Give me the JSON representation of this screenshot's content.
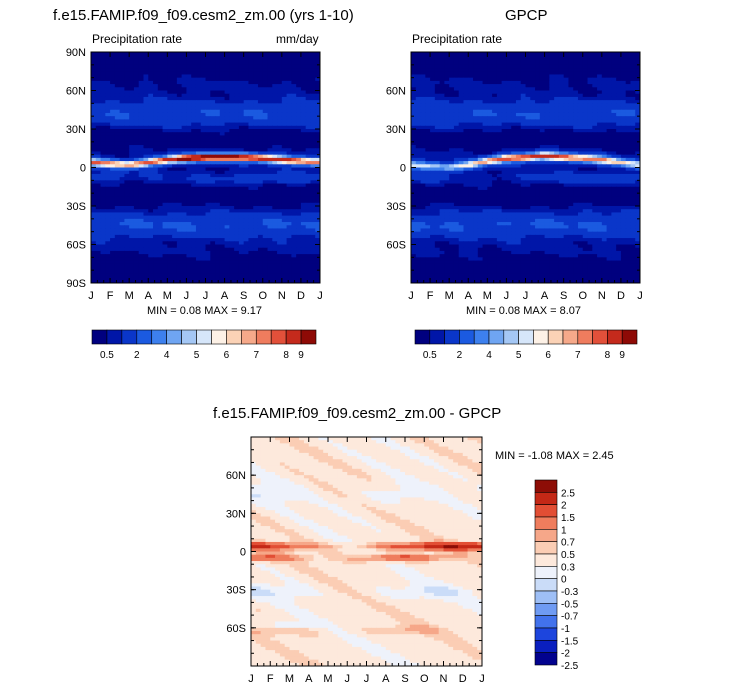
{
  "panels": {
    "model": {
      "title": "f.e15.FAMIP.f09_f09.cesm2_zm.00 (yrs 1-10)",
      "subtitle_left": "Precipitation rate",
      "subtitle_right": "mm/day",
      "min_label": "MIN =",
      "min_value": "0.08",
      "max_label": "MAX =",
      "max_value": "9.17"
    },
    "obs": {
      "title": "GPCP",
      "subtitle_left": "Precipitation rate",
      "subtitle_right": "",
      "min_label": "MIN =",
      "min_value": "0.08",
      "max_label": "MAX =",
      "max_value": "8.07"
    },
    "diff": {
      "title": "f.e15.FAMIP.f09_f09.cesm2_zm.00 - GPCP",
      "minmax_text": "MIN =  -1.08 MAX =   2.45"
    }
  },
  "colors": {
    "precip_scale": [
      "#00007f",
      "#0016a8",
      "#0a36c9",
      "#1b5ae0",
      "#3d80ee",
      "#6fa5f2",
      "#a4c7f5",
      "#d6e6fa",
      "#fdf1e6",
      "#fbd2b6",
      "#f6a98a",
      "#ef7c5e",
      "#e2503a",
      "#c42a1c",
      "#8e0a06"
    ],
    "diff_scale": [
      "#02028e",
      "#0a1fbf",
      "#1d45dd",
      "#4272ec",
      "#6f9bf3",
      "#9ebff6",
      "#cadcf8",
      "#eef2fb",
      "#fde9dc",
      "#fbcdb4",
      "#f6a789",
      "#ef7d5d",
      "#e24e34",
      "#c42816",
      "#8d0d06"
    ]
  },
  "chart_data": [
    {
      "type": "heatmap",
      "title": "f.e15.FAMIP.f09_f09.cesm2_zm.00 (yrs 1-10)",
      "variable": "Precipitation rate",
      "units": "mm/day",
      "x": [
        "J",
        "F",
        "M",
        "A",
        "M",
        "J",
        "J",
        "A",
        "S",
        "O",
        "N",
        "D",
        "J"
      ],
      "y_ticks": [
        "90N",
        "60N",
        "30N",
        "0",
        "30S",
        "60S",
        "90S"
      ],
      "ylim": [
        -90,
        90
      ],
      "min": 0.08,
      "max": 9.17,
      "colorbar_labels": [
        "0.5",
        "2",
        "4",
        "5",
        "6",
        "7",
        "8",
        "9"
      ],
      "itcz_lat": [
        4,
        3,
        2,
        4,
        6,
        7,
        8,
        8,
        8,
        7,
        6,
        5,
        4
      ],
      "itcz_peak": [
        7.0,
        6.5,
        6.5,
        7.0,
        8.0,
        9.0,
        9.2,
        9.0,
        8.6,
        8.2,
        8.0,
        7.5,
        7.0
      ]
    },
    {
      "type": "heatmap",
      "title": "GPCP",
      "variable": "Precipitation rate",
      "units": "",
      "x": [
        "J",
        "F",
        "M",
        "A",
        "M",
        "J",
        "J",
        "A",
        "S",
        "O",
        "N",
        "D",
        "J"
      ],
      "y_ticks": [
        "60N",
        "30N",
        "0",
        "30S",
        "60S"
      ],
      "ylim": [
        -90,
        90
      ],
      "min": 0.08,
      "max": 8.07,
      "colorbar_labels": [
        "0.5",
        "2",
        "4",
        "5",
        "6",
        "7",
        "8",
        "9"
      ],
      "itcz_lat": [
        2,
        1,
        0,
        2,
        5,
        7,
        8,
        9,
        8,
        7,
        6,
        4,
        2
      ],
      "itcz_peak": [
        5.0,
        4.5,
        4.5,
        5.2,
        6.5,
        7.5,
        8.0,
        8.0,
        7.5,
        7.0,
        6.5,
        5.5,
        5.0
      ]
    },
    {
      "type": "heatmap",
      "title": "f.e15.FAMIP.f09_f09.cesm2_zm.00 - GPCP",
      "x": [
        "J",
        "F",
        "M",
        "A",
        "M",
        "J",
        "J",
        "A",
        "S",
        "O",
        "N",
        "D",
        "J"
      ],
      "y_ticks": [
        "60N",
        "30N",
        "0",
        "30S",
        "60S"
      ],
      "ylim": [
        -90,
        90
      ],
      "min": -1.08,
      "max": 2.45,
      "colorbar_labels": [
        "2.5",
        "2",
        "1.5",
        "1",
        "0.7",
        "0.5",
        "0.3",
        "0",
        "-0.3",
        "-0.5",
        "-0.7",
        "-1",
        "-1.5",
        "-2",
        "-2.5"
      ]
    }
  ]
}
